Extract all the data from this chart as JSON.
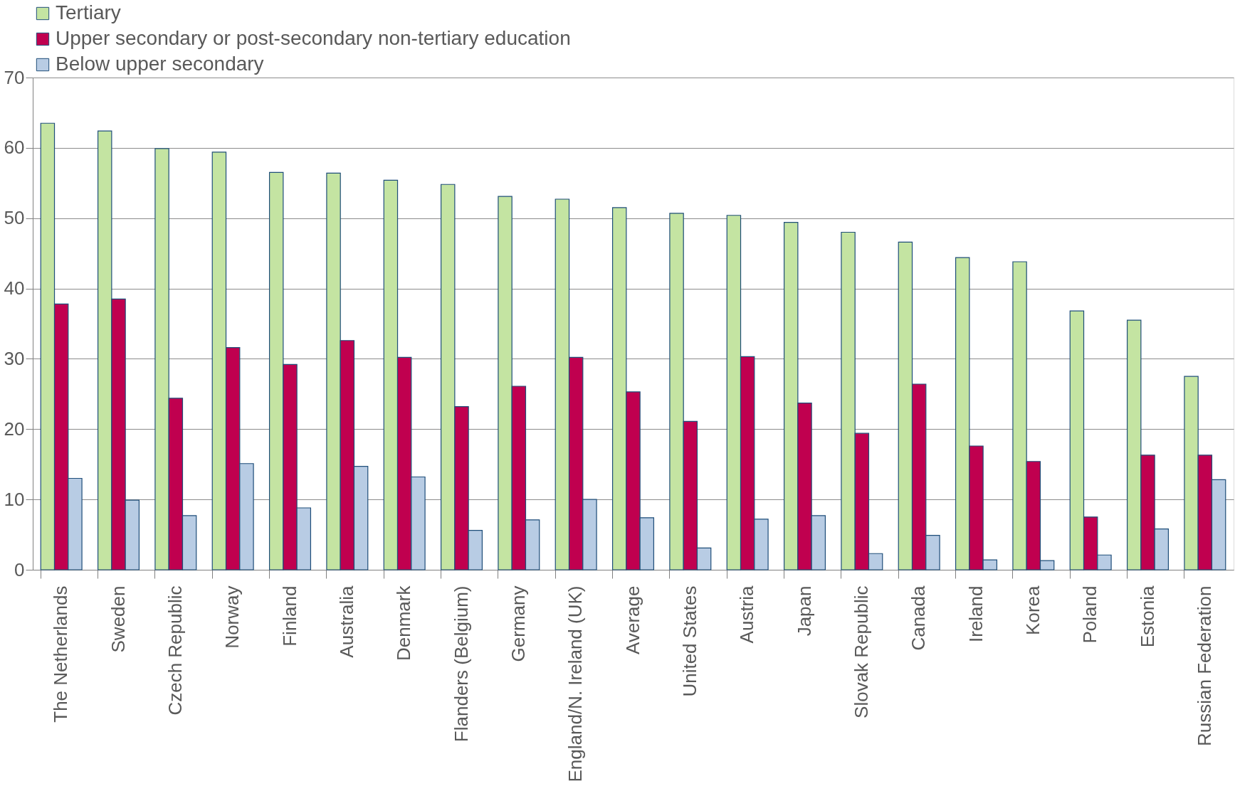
{
  "chart_data": {
    "type": "bar",
    "categories": [
      "The Netherlands",
      "Sweden",
      "Czech Republic",
      "Norway",
      "Finland",
      "Australia",
      "Denmark",
      "Flanders (Belgium)",
      "Germany",
      "England/N. Ireland (UK)",
      "Average",
      "United States",
      "Austria",
      "Japan",
      "Slovak Republic",
      "Canada",
      "Ireland",
      "Korea",
      "Poland",
      "Estonia",
      "Russian Federation"
    ],
    "series": [
      {
        "name": "Tertiary",
        "color": "#c4e4a2",
        "values": [
          63.5,
          62.4,
          59.9,
          59.4,
          56.5,
          56.4,
          55.4,
          54.8,
          53.1,
          52.7,
          51.5,
          50.7,
          50.4,
          49.4,
          48.0,
          46.6,
          44.4,
          43.8,
          36.8,
          35.5,
          27.5
        ]
      },
      {
        "name": "Upper secondary or post-secondary non-tertiary education",
        "color": "#c0004f",
        "values": [
          37.8,
          38.5,
          24.4,
          31.6,
          29.2,
          32.6,
          30.2,
          23.2,
          26.1,
          30.2,
          25.3,
          21.1,
          30.3,
          23.7,
          19.4,
          26.4,
          17.6,
          15.4,
          7.5,
          16.3,
          16.3
        ]
      },
      {
        "name": "Below upper secondary",
        "color": "#b8cce4",
        "values": [
          13.0,
          9.9,
          7.7,
          15.1,
          8.8,
          14.7,
          13.2,
          5.6,
          7.1,
          10.0,
          7.4,
          3.1,
          7.2,
          7.7,
          2.3,
          4.9,
          1.4,
          1.3,
          2.1,
          5.8,
          12.8
        ]
      }
    ],
    "ylim": [
      0,
      70
    ],
    "yticks": [
      0,
      10,
      20,
      30,
      40,
      50,
      60,
      70
    ],
    "grid": "y",
    "legend": "top"
  }
}
